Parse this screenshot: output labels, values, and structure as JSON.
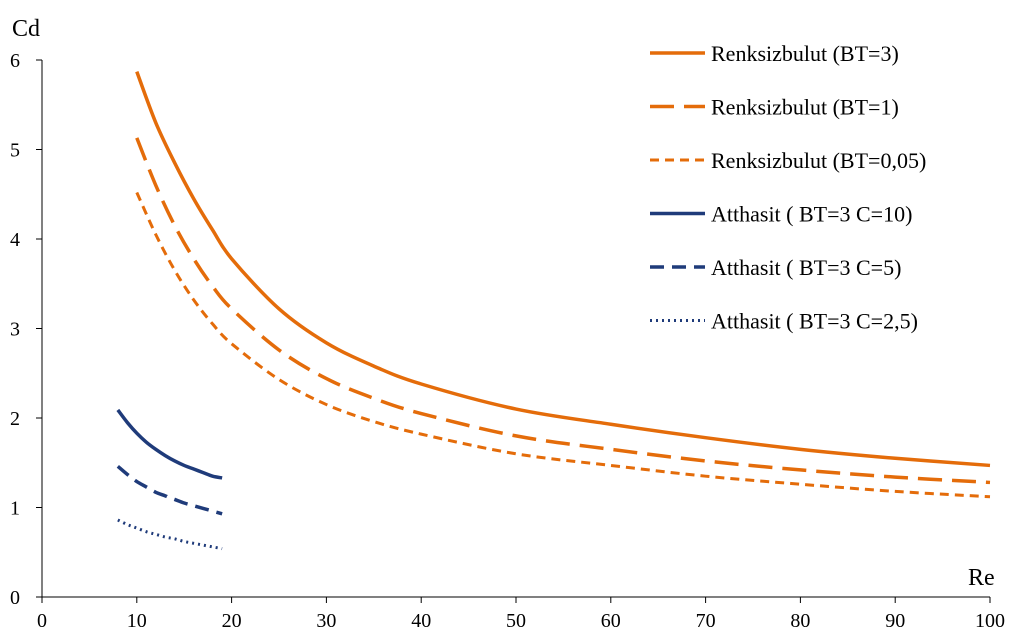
{
  "chart_data": {
    "type": "line",
    "xlabel": "Re",
    "ylabel": "Cd",
    "xlim": [
      0,
      100
    ],
    "ylim": [
      0,
      6
    ],
    "x_ticks": [
      0,
      10,
      20,
      30,
      40,
      50,
      60,
      70,
      80,
      90,
      100
    ],
    "y_ticks": [
      0,
      1,
      2,
      3,
      4,
      5,
      6
    ],
    "grid": false,
    "legend_position": "top-right",
    "series": [
      {
        "name": "Renksizbulut (BT=3)",
        "color": "#E46C0A",
        "dash": "solid",
        "x": [
          10,
          12,
          14,
          16,
          18,
          20,
          25,
          30,
          35,
          40,
          50,
          60,
          70,
          80,
          90,
          100
        ],
        "y": [
          5.87,
          5.3,
          4.85,
          4.45,
          4.1,
          3.78,
          3.22,
          2.84,
          2.58,
          2.38,
          2.1,
          1.93,
          1.78,
          1.65,
          1.55,
          1.47
        ]
      },
      {
        "name": "Renksizbulut (BT=1)",
        "color": "#E46C0A",
        "dash": "longdash",
        "x": [
          10,
          12,
          14,
          16,
          18,
          20,
          25,
          30,
          35,
          40,
          50,
          60,
          70,
          80,
          90,
          100
        ],
        "y": [
          5.13,
          4.6,
          4.15,
          3.78,
          3.47,
          3.22,
          2.76,
          2.44,
          2.22,
          2.05,
          1.8,
          1.65,
          1.52,
          1.42,
          1.34,
          1.28
        ]
      },
      {
        "name": "Renksizbulut (BT=0,05)",
        "color": "#E46C0A",
        "dash": "shortdash",
        "x": [
          10,
          12,
          14,
          16,
          18,
          20,
          25,
          30,
          35,
          40,
          50,
          60,
          70,
          80,
          90,
          100
        ],
        "y": [
          4.52,
          4.05,
          3.65,
          3.32,
          3.05,
          2.83,
          2.43,
          2.15,
          1.96,
          1.82,
          1.6,
          1.47,
          1.35,
          1.26,
          1.18,
          1.12
        ]
      },
      {
        "name": "Atthasit ( BT=3 C=10)",
        "color": "#1F3B7A",
        "dash": "solid",
        "x": [
          8,
          9,
          10,
          11,
          12,
          13,
          14,
          15,
          16,
          17,
          18,
          19
        ],
        "y": [
          2.09,
          1.95,
          1.83,
          1.73,
          1.65,
          1.58,
          1.52,
          1.47,
          1.43,
          1.39,
          1.35,
          1.33
        ]
      },
      {
        "name": "Atthasit ( BT=3 C=5)",
        "color": "#1F3B7A",
        "dash": "dash",
        "x": [
          8,
          9,
          10,
          11,
          12,
          13,
          14,
          15,
          16,
          17,
          18,
          19
        ],
        "y": [
          1.46,
          1.37,
          1.29,
          1.23,
          1.17,
          1.13,
          1.09,
          1.05,
          1.02,
          0.99,
          0.96,
          0.93
        ]
      },
      {
        "name": "Atthasit ( BT=3 C=2,5)",
        "color": "#1F3B7A",
        "dash": "dot",
        "x": [
          8,
          9,
          10,
          11,
          12,
          13,
          14,
          15,
          16,
          17,
          18,
          19
        ],
        "y": [
          0.86,
          0.81,
          0.77,
          0.73,
          0.7,
          0.67,
          0.65,
          0.62,
          0.6,
          0.58,
          0.56,
          0.54
        ]
      }
    ]
  }
}
